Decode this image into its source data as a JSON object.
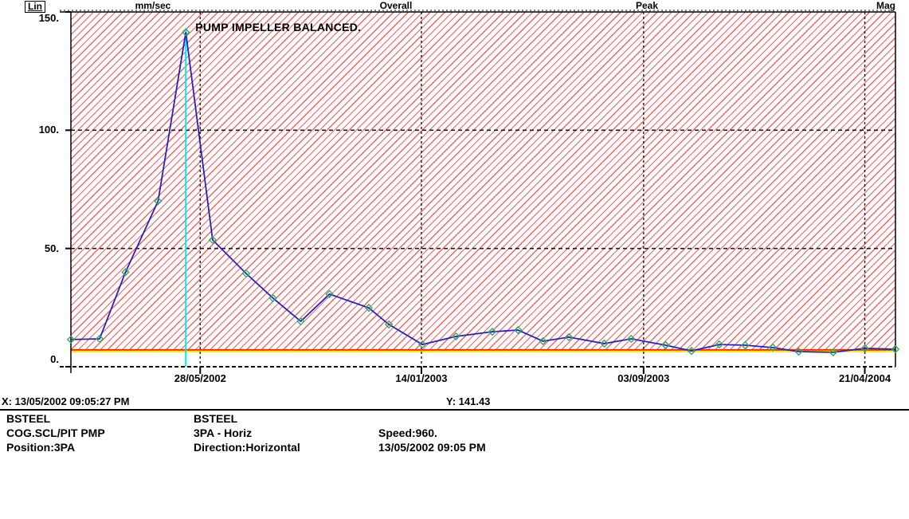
{
  "header": {
    "scale_button": "Lin",
    "unit_label": "mm/sec",
    "overall_label": "Overall",
    "peak_label": "Peak",
    "mag_label": "Mag"
  },
  "chart_data": {
    "type": "line",
    "title": "",
    "ylabel": "mm/sec",
    "ylim": [
      0,
      150
    ],
    "grid": "dashed",
    "legend_position": "none",
    "y_ticks": [
      {
        "label": "150.",
        "value": 150
      },
      {
        "label": "100.",
        "value": 100
      },
      {
        "label": "50.",
        "value": 50
      },
      {
        "label": "0.",
        "value": 0
      }
    ],
    "x_ticks": [
      "28/05/2002",
      "14/01/2003",
      "03/09/2003",
      "21/04/2004"
    ],
    "x_axis": {
      "start": "13/01/2002",
      "end": "23/05/2004"
    },
    "series": [
      {
        "name": "Overall Peak (mm/sec)",
        "points": [
          {
            "date": "13/01/2002",
            "value": 11.5
          },
          {
            "date": "12/02/2002",
            "value": 11.8
          },
          {
            "date": "11/03/2002",
            "value": 40.0
          },
          {
            "date": "14/04/2002",
            "value": 70.0
          },
          {
            "date": "13/05/2002",
            "value": 141.43
          },
          {
            "date": "10/06/2002",
            "value": 53.6
          },
          {
            "date": "15/07/2002",
            "value": 39.4
          },
          {
            "date": "12/08/2002",
            "value": 29.0
          },
          {
            "date": "10/09/2002",
            "value": 19.2
          },
          {
            "date": "10/10/2002",
            "value": 30.7
          },
          {
            "date": "20/11/2002",
            "value": 24.9
          },
          {
            "date": "11/12/2002",
            "value": 17.9
          },
          {
            "date": "15/01/2003",
            "value": 9.4
          },
          {
            "date": "19/02/2003",
            "value": 12.8
          },
          {
            "date": "29/03/2003",
            "value": 14.8
          },
          {
            "date": "25/04/2003",
            "value": 15.5
          },
          {
            "date": "21/05/2003",
            "value": 10.8
          },
          {
            "date": "17/06/2003",
            "value": 12.5
          },
          {
            "date": "24/07/2003",
            "value": 9.8
          },
          {
            "date": "21/08/2003",
            "value": 11.8
          },
          {
            "date": "26/09/2003",
            "value": 9.1
          },
          {
            "date": "23/10/2003",
            "value": 6.7
          },
          {
            "date": "21/11/2003",
            "value": 9.4
          },
          {
            "date": "18/12/2003",
            "value": 9.1
          },
          {
            "date": "16/01/2004",
            "value": 8.1
          },
          {
            "date": "12/02/2004",
            "value": 6.4
          },
          {
            "date": "19/03/2004",
            "value": 6.1
          },
          {
            "date": "21/04/2004",
            "value": 7.8
          },
          {
            "date": "23/05/2004",
            "value": 7.4
          }
        ]
      }
    ],
    "alarm_lines": [
      {
        "name": "alert",
        "color": "#ff3000",
        "value": 7.1
      },
      {
        "name": "warning",
        "color": "#ffee00",
        "value": 6.4
      }
    ],
    "cursor": {
      "date": "13/05/2002",
      "value": 141.43,
      "color": "#00e8e8"
    },
    "annotation": {
      "text": "PUMP IMPELLER BALANCED.",
      "date": "13/05/2002",
      "value": 141.43
    },
    "colors": {
      "line": "#2121c8",
      "marker": "#2faa60",
      "hatch": "#ff5f5f",
      "grid": "#1a1a1a"
    }
  },
  "status": {
    "x_readout": "X: 13/05/2002 09:05:27 PM",
    "y_readout": "Y: 141.43"
  },
  "info": {
    "rows": [
      [
        "BSTEEL",
        "BSTEEL",
        ""
      ],
      [
        "COG.SCL/PIT PMP",
        "3PA - Horiz",
        "Speed:960."
      ],
      [
        "Position:3PA",
        "Direction:Horizontal",
        "13/05/2002 09:05 PM"
      ]
    ]
  }
}
